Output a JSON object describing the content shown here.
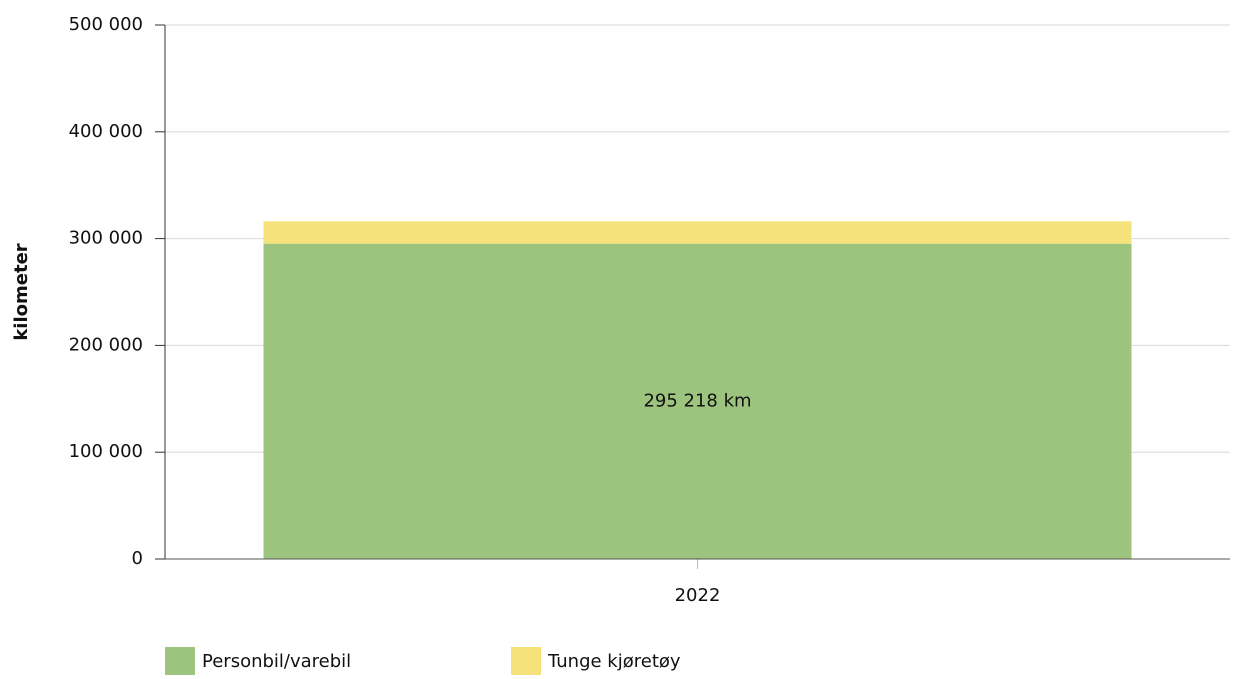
{
  "chart_data": {
    "type": "stacked-bar",
    "y_label": "kilometer",
    "categories": [
      "2022"
    ],
    "series": [
      {
        "name": "Personbil/varebil",
        "color": "#9dc47e",
        "values": [
          295218
        ],
        "value_labels": [
          "295 218 km"
        ]
      },
      {
        "name": "Tunge kjøretøy",
        "color": "#f5e27a",
        "values": [
          21000
        ]
      }
    ],
    "ylim": [
      0,
      500000
    ],
    "yticks": [
      0,
      {
        "value": 100000,
        "label": "100 000"
      },
      {
        "value": 200000,
        "label": "200 000"
      },
      {
        "value": 300000,
        "label": "300 000"
      },
      {
        "value": 400000,
        "label": "400 000"
      },
      {
        "value": 500000,
        "label": "500 000"
      }
    ],
    "grid": true
  }
}
